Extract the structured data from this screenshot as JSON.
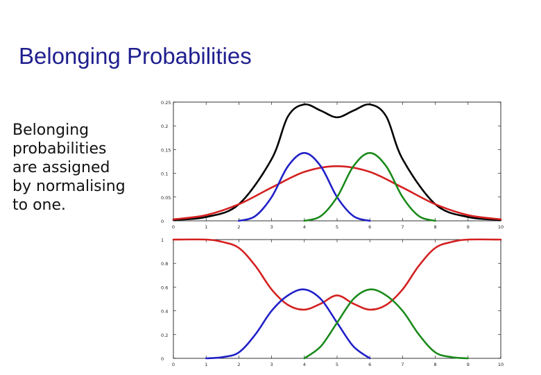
{
  "slide": {
    "title": "Belonging Probabilities",
    "body_lines": [
      "Belonging",
      "probabilities",
      "are assigned",
      "by normalising",
      "to one."
    ]
  },
  "chart_data": [
    {
      "type": "line",
      "title": "",
      "xlabel": "",
      "ylabel": "",
      "xlim": [
        0,
        10
      ],
      "ylim": [
        0,
        0.25
      ],
      "x_ticks": [
        "0",
        "1",
        "2",
        "3",
        "4",
        "5",
        "6",
        "7",
        "8",
        "9",
        "10"
      ],
      "y_ticks": [
        "0",
        "0.05",
        "0.1",
        "0.15",
        "0.2",
        "0.25"
      ],
      "grid": false,
      "series": [
        {
          "color": "#000000",
          "x": [
            0,
            1,
            2,
            3,
            3.5,
            4,
            4.5,
            5,
            5.5,
            6,
            6.5,
            7,
            8,
            9,
            10
          ],
          "y": [
            0.002,
            0.008,
            0.035,
            0.13,
            0.22,
            0.245,
            0.232,
            0.218,
            0.232,
            0.245,
            0.22,
            0.13,
            0.035,
            0.008,
            0.002
          ]
        },
        {
          "color": "#d42020",
          "x": [
            0,
            1,
            2,
            3,
            4,
            5,
            6,
            7,
            8,
            9,
            10
          ],
          "y": [
            0.003,
            0.012,
            0.035,
            0.07,
            0.103,
            0.115,
            0.103,
            0.07,
            0.035,
            0.012,
            0.003
          ]
        },
        {
          "color": "#2020c8",
          "x": [
            2,
            2.5,
            3,
            3.5,
            4,
            4.5,
            5,
            5.5,
            6
          ],
          "y": [
            0,
            0.01,
            0.05,
            0.115,
            0.143,
            0.115,
            0.05,
            0.01,
            0
          ]
        },
        {
          "color": "#1a8a1a",
          "x": [
            4,
            4.5,
            5,
            5.5,
            6,
            6.5,
            7,
            7.5,
            8
          ],
          "y": [
            0,
            0.01,
            0.05,
            0.115,
            0.143,
            0.115,
            0.05,
            0.01,
            0
          ]
        }
      ]
    },
    {
      "type": "line",
      "title": "",
      "xlabel": "",
      "ylabel": "",
      "xlim": [
        0,
        10
      ],
      "ylim": [
        0,
        1
      ],
      "x_ticks": [
        "0",
        "1",
        "2",
        "3",
        "4",
        "5",
        "6",
        "7",
        "8",
        "9",
        "10"
      ],
      "y_ticks": [
        "0",
        "0.2",
        "0.4",
        "0.6",
        "0.8",
        "1"
      ],
      "grid": false,
      "series": [
        {
          "color": "#d42020",
          "x": [
            0,
            1,
            1.5,
            2,
            2.5,
            3,
            3.5,
            4,
            4.5,
            5,
            5.5,
            6,
            6.5,
            7,
            7.5,
            8,
            8.5,
            9,
            10
          ],
          "y": [
            1,
            1,
            0.98,
            0.93,
            0.78,
            0.58,
            0.45,
            0.41,
            0.46,
            0.53,
            0.46,
            0.41,
            0.45,
            0.58,
            0.78,
            0.93,
            0.98,
            1,
            1
          ]
        },
        {
          "color": "#2020c8",
          "x": [
            1,
            1.5,
            2,
            2.5,
            3,
            3.5,
            4,
            4.5,
            5,
            5.5,
            6
          ],
          "y": [
            0,
            0.01,
            0.05,
            0.2,
            0.4,
            0.53,
            0.58,
            0.5,
            0.3,
            0.1,
            0
          ]
        },
        {
          "color": "#1a8a1a",
          "x": [
            4,
            4.5,
            5,
            5.5,
            6,
            6.5,
            7,
            7.5,
            8,
            8.5,
            9
          ],
          "y": [
            0,
            0.1,
            0.3,
            0.5,
            0.58,
            0.53,
            0.4,
            0.2,
            0.05,
            0.01,
            0
          ]
        }
      ]
    }
  ]
}
